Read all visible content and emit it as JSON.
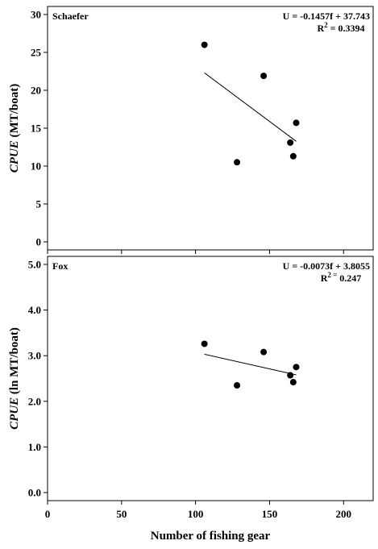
{
  "figure": {
    "xlabel": "Number of fishing gear"
  },
  "chart_data": [
    {
      "type": "scatter",
      "panel_label": "Schaefer",
      "ylabel_italic": "CPUE",
      "ylabel_rest": " (MT/boat)",
      "equation_line1": "U = -0.1457f + 37.743",
      "equation_r2_prefix": "R",
      "equation_r2_sup": "2",
      "equation_r2_value": " = 0.3394",
      "xlim": [
        0,
        220
      ],
      "ylim": [
        0,
        30
      ],
      "yticks": [
        0,
        5,
        10,
        15,
        20,
        25,
        30
      ],
      "ytick_labels": [
        "0",
        "5",
        "10",
        "15",
        "20",
        "25",
        "30"
      ],
      "xticks": [
        0,
        50,
        100,
        150,
        200
      ],
      "x": [
        106,
        128,
        146,
        164,
        166,
        168
      ],
      "y": [
        26.0,
        10.5,
        21.9,
        13.1,
        11.3,
        15.7
      ],
      "trendline": {
        "slope": -0.1457,
        "intercept": 37.743,
        "x_range": [
          106,
          168
        ]
      }
    },
    {
      "type": "scatter",
      "panel_label": "Fox",
      "ylabel_italic": "CPUE",
      "ylabel_rest": " (ln MT/boat)",
      "equation_line1": "U = -0.0073f + 3.8055",
      "equation_r2_prefix": "R",
      "equation_r2_sup": "2 =",
      "equation_r2_value": " 0.247",
      "xlim": [
        0,
        220
      ],
      "ylim": [
        0,
        5
      ],
      "yticks": [
        0,
        1,
        2,
        3,
        4,
        5
      ],
      "ytick_labels": [
        "0.0",
        "1.0",
        "2.0",
        "3.0",
        "4.0",
        "5.0"
      ],
      "xticks": [
        0,
        50,
        100,
        150,
        200
      ],
      "xtick_labels": [
        "0",
        "50",
        "100",
        "150",
        "200"
      ],
      "x": [
        106,
        128,
        146,
        164,
        166,
        168
      ],
      "y": [
        3.26,
        2.35,
        3.08,
        2.57,
        2.42,
        2.75
      ],
      "trendline": {
        "slope": -0.0073,
        "intercept": 3.8055,
        "x_range": [
          106,
          168
        ]
      }
    }
  ]
}
